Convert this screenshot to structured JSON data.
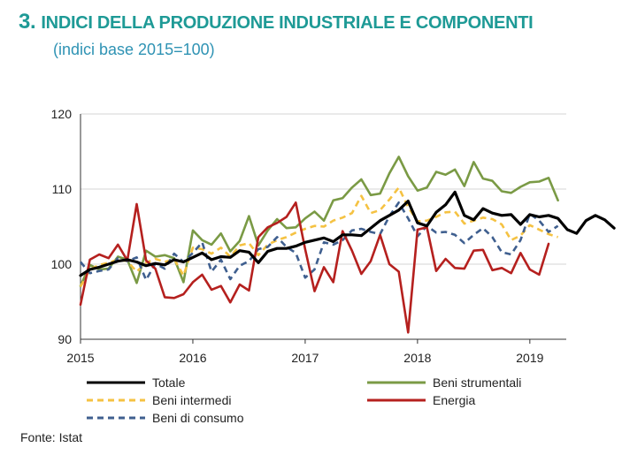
{
  "header": {
    "number": "3.",
    "title": "INDICI DELLA PRODUZIONE INDUSTRIALE E COMPONENTI",
    "subtitle": "(indici base 2015=100)"
  },
  "footer": {
    "source": "Fonte: Istat"
  },
  "colors": {
    "title": "#1e9a96",
    "subtitle": "#2f93b4",
    "Totale": "#000000",
    "Beni strumentali": "#7a9a45",
    "Beni intermedi": "#f5c242",
    "Energia": "#b5201e",
    "Beni di consumo": "#3f5f8f"
  },
  "chart_data": {
    "type": "line",
    "x_start": "2015-01",
    "x_labels": [
      "2015",
      "2016",
      "2017",
      "2018",
      "2019"
    ],
    "yticks": [
      "90",
      "100",
      "110",
      "120"
    ],
    "ylim": [
      90,
      120
    ],
    "grid": "horizontal",
    "legend_position": "bottom",
    "series": [
      {
        "name": "Totale",
        "style": "solid",
        "values": [
          98.5,
          99.3,
          99.6,
          100.0,
          100.4,
          100.6,
          100.3,
          99.8,
          100.1,
          99.9,
          100.6,
          100.3,
          100.9,
          101.5,
          100.6,
          101.0,
          100.9,
          101.8,
          101.6,
          100.2,
          101.7,
          102.1,
          102.1,
          102.4,
          102.9,
          103.2,
          103.5,
          103.0,
          103.9,
          103.9,
          103.8,
          104.8,
          105.8,
          106.5,
          107.2,
          108.4,
          105.5,
          105.1,
          106.9,
          107.9,
          109.6,
          106.5,
          105.9,
          107.4,
          106.8,
          106.5,
          106.6,
          105.3,
          106.6,
          106.3,
          106.5,
          106.1,
          104.6,
          104.1,
          105.8,
          106.5,
          105.9,
          104.8
        ]
      },
      {
        "name": "Beni strumentali",
        "style": "solid",
        "values": [
          97.1,
          99.9,
          99.3,
          99.4,
          101.0,
          100.6,
          97.5,
          101.8,
          101.0,
          101.2,
          100.8,
          97.6,
          104.5,
          103.2,
          102.6,
          104.1,
          101.7,
          103.1,
          106.4,
          102.5,
          104.5,
          106.0,
          104.8,
          104.9,
          106.1,
          107.0,
          105.8,
          108.5,
          108.8,
          110.2,
          111.3,
          109.2,
          109.4,
          112.1,
          114.3,
          111.7,
          109.8,
          110.2,
          112.3,
          111.9,
          112.6,
          110.4,
          113.6,
          111.4,
          111.1,
          109.7,
          109.5,
          110.3,
          110.9,
          111.0,
          111.5,
          108.5
        ]
      },
      {
        "name": "Beni intermedi",
        "style": "dashed",
        "values": [
          97.0,
          99.3,
          99.9,
          100.2,
          100.6,
          100.4,
          99.0,
          100.2,
          100.7,
          100.3,
          100.7,
          98.5,
          102.2,
          102.0,
          101.4,
          102.2,
          101.0,
          102.5,
          102.8,
          101.2,
          102.6,
          103.2,
          103.6,
          104.2,
          104.7,
          105.1,
          105.0,
          105.8,
          106.2,
          106.8,
          109.1,
          106.8,
          107.2,
          108.6,
          110.2,
          107.6,
          105.7,
          105.8,
          106.3,
          106.9,
          107.0,
          105.4,
          105.8,
          106.2,
          106.0,
          105.3,
          103.2,
          103.8,
          105.2,
          104.6,
          104.0,
          103.6
        ]
      },
      {
        "name": "Energia",
        "style": "solid",
        "values": [
          94.6,
          100.6,
          101.3,
          100.8,
          102.6,
          100.5,
          108.0,
          100.5,
          99.4,
          95.6,
          95.5,
          96.0,
          97.6,
          98.6,
          96.6,
          97.1,
          94.9,
          97.3,
          96.5,
          103.6,
          104.9,
          105.5,
          106.3,
          108.2,
          102.0,
          96.4,
          99.6,
          97.6,
          104.4,
          101.8,
          98.7,
          100.4,
          103.9,
          100.0,
          99.0,
          90.9,
          104.6,
          104.9,
          99.1,
          100.7,
          99.5,
          99.4,
          101.8,
          101.9,
          99.2,
          99.5,
          98.8,
          101.5,
          99.3,
          98.6,
          102.7
        ]
      },
      {
        "name": "Beni di consumo",
        "style": "dashed",
        "values": [
          100.3,
          98.8,
          99.1,
          99.3,
          100.8,
          100.4,
          100.9,
          97.9,
          100.1,
          99.4,
          101.4,
          100.3,
          101.5,
          102.9,
          99.0,
          100.6,
          98.0,
          99.8,
          100.4,
          102.0,
          102.3,
          103.6,
          102.3,
          101.5,
          98.2,
          99.3,
          102.9,
          102.6,
          103.2,
          104.5,
          104.7,
          104.3,
          104.0,
          106.4,
          108.2,
          106.1,
          103.7,
          105.1,
          104.2,
          104.3,
          103.9,
          102.8,
          103.9,
          104.8,
          103.6,
          101.6,
          101.3,
          103.2,
          106.7,
          105.8,
          104.3,
          105.1
        ]
      }
    ],
    "legend": [
      {
        "name": "Totale",
        "style": "solid"
      },
      {
        "name": "Beni strumentali",
        "style": "solid"
      },
      {
        "name": "Beni intermedi",
        "style": "dashed"
      },
      {
        "name": "Energia",
        "style": "solid"
      },
      {
        "name": "Beni di consumo",
        "style": "dashed"
      }
    ]
  }
}
